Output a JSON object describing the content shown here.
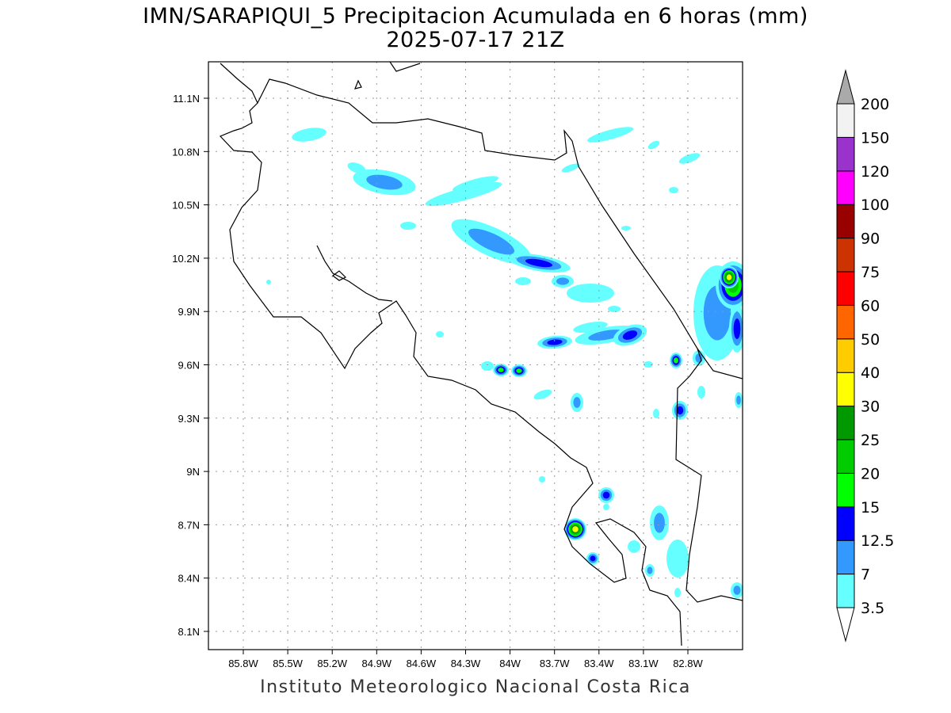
{
  "title": "IMN/SARAPIQUI_5 Precipitacion Acumulada en 6 horas (mm)",
  "subtitle": "2025-07-17 21Z",
  "credit": "Instituto Meteorologico Nacional Costa Rica",
  "map": {
    "lon_labels": [
      "85.8W",
      "85.5W",
      "85.2W",
      "84.9W",
      "84.6W",
      "84.3W",
      "84W",
      "83.7W",
      "83.4W",
      "83.1W",
      "82.8W"
    ],
    "lat_labels": [
      "11.1N",
      "10.8N",
      "10.5N",
      "10.2N",
      "9.9N",
      "9.6N",
      "9.3N",
      "9N",
      "8.7N",
      "8.4N",
      "8.1N"
    ]
  },
  "colorbar": {
    "units": "mm",
    "labels": [
      "3.5",
      "7",
      "12.5",
      "15",
      "20",
      "25",
      "30",
      "40",
      "50",
      "60",
      "75",
      "90",
      "100",
      "120",
      "150",
      "200"
    ],
    "colors": [
      "#66ffff",
      "#3399ff",
      "#0000ff",
      "#00ff00",
      "#00cc00",
      "#009900",
      "#ffff00",
      "#ffcc00",
      "#ff6600",
      "#ff0000",
      "#cc3300",
      "#990000",
      "#ff00ff",
      "#9933cc",
      "#f2f2f2"
    ],
    "under_color": "#ffffff",
    "over_color": "#aaaaaa"
  }
}
